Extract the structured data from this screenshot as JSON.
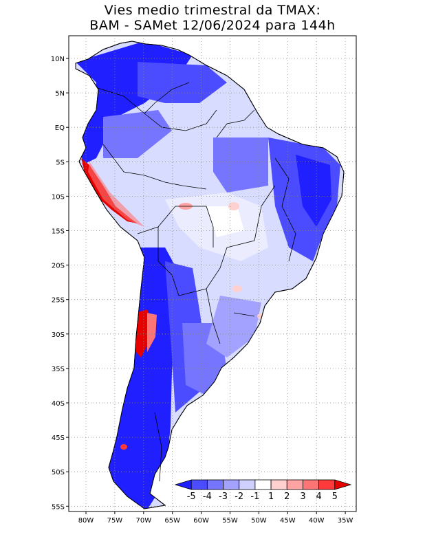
{
  "title": {
    "line1": "Vies medio trimestral da TMAX:",
    "line2": "BAM - SAMet 12/06/2024  para 144h"
  },
  "map": {
    "lat_labels": [
      "10N",
      "5N",
      "EQ",
      "5S",
      "10S",
      "15S",
      "20S",
      "25S",
      "30S",
      "35S",
      "40S",
      "45S",
      "50S",
      "55S"
    ],
    "lon_labels": [
      "80W",
      "75W",
      "70W",
      "65W",
      "60W",
      "55W",
      "50W",
      "45W",
      "40W",
      "35W"
    ]
  },
  "colorbar": {
    "labels": [
      "-5",
      "-4",
      "-3",
      "-2",
      "-1",
      "1",
      "2",
      "3",
      "4",
      "5"
    ],
    "colors": [
      "#1f1fff",
      "#4b4bff",
      "#7575ff",
      "#a3a3ff",
      "#d0d0ff",
      "#ffffff",
      "#ffd0d0",
      "#ffa3a3",
      "#ff7575",
      "#ff3a3a",
      "#e60000"
    ]
  }
}
